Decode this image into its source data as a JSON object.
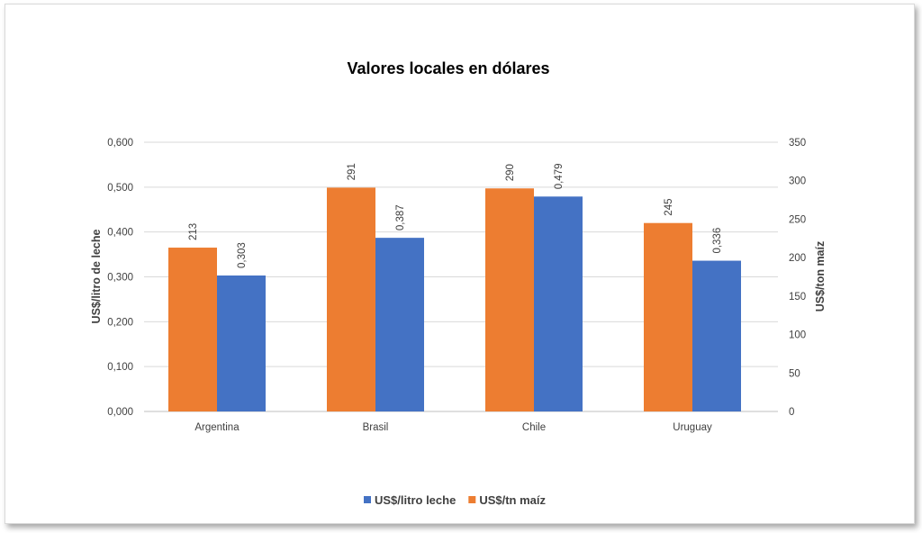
{
  "chart_data": {
    "type": "bar",
    "title": "Valores locales en dólares",
    "categories": [
      "Argentina",
      "Brasil",
      "Chile",
      "Uruguay"
    ],
    "series": [
      {
        "name": "US$/tn maíz",
        "axis": "right",
        "values": [
          213,
          291,
          290,
          245
        ],
        "labels": [
          "213",
          "291",
          "290",
          "245"
        ],
        "color": "#ED7D31"
      },
      {
        "name": "US$/litro leche",
        "axis": "left",
        "values": [
          0.303,
          0.387,
          0.479,
          0.336
        ],
        "labels": [
          "0,303",
          "0,387",
          "0,479",
          "0,336"
        ],
        "color": "#4472C4"
      }
    ],
    "y_left": {
      "label": "US$/litro de leche",
      "range": [
        0,
        0.6
      ],
      "ticks": [
        0,
        0.1,
        0.2,
        0.3,
        0.4,
        0.5,
        0.6
      ],
      "tick_labels": [
        "0,000",
        "0,100",
        "0,200",
        "0,300",
        "0,400",
        "0,500",
        "0,600"
      ]
    },
    "y_right": {
      "label": "US$/ton maíz",
      "range": [
        0,
        350
      ],
      "ticks": [
        0,
        50,
        100,
        150,
        200,
        250,
        300,
        350
      ],
      "tick_labels": [
        "0",
        "50",
        "100",
        "150",
        "200",
        "250",
        "300",
        "350"
      ]
    },
    "legend": {
      "position": "bottom",
      "order": [
        "US$/litro leche",
        "US$/tn maíz"
      ]
    },
    "grid": true
  }
}
